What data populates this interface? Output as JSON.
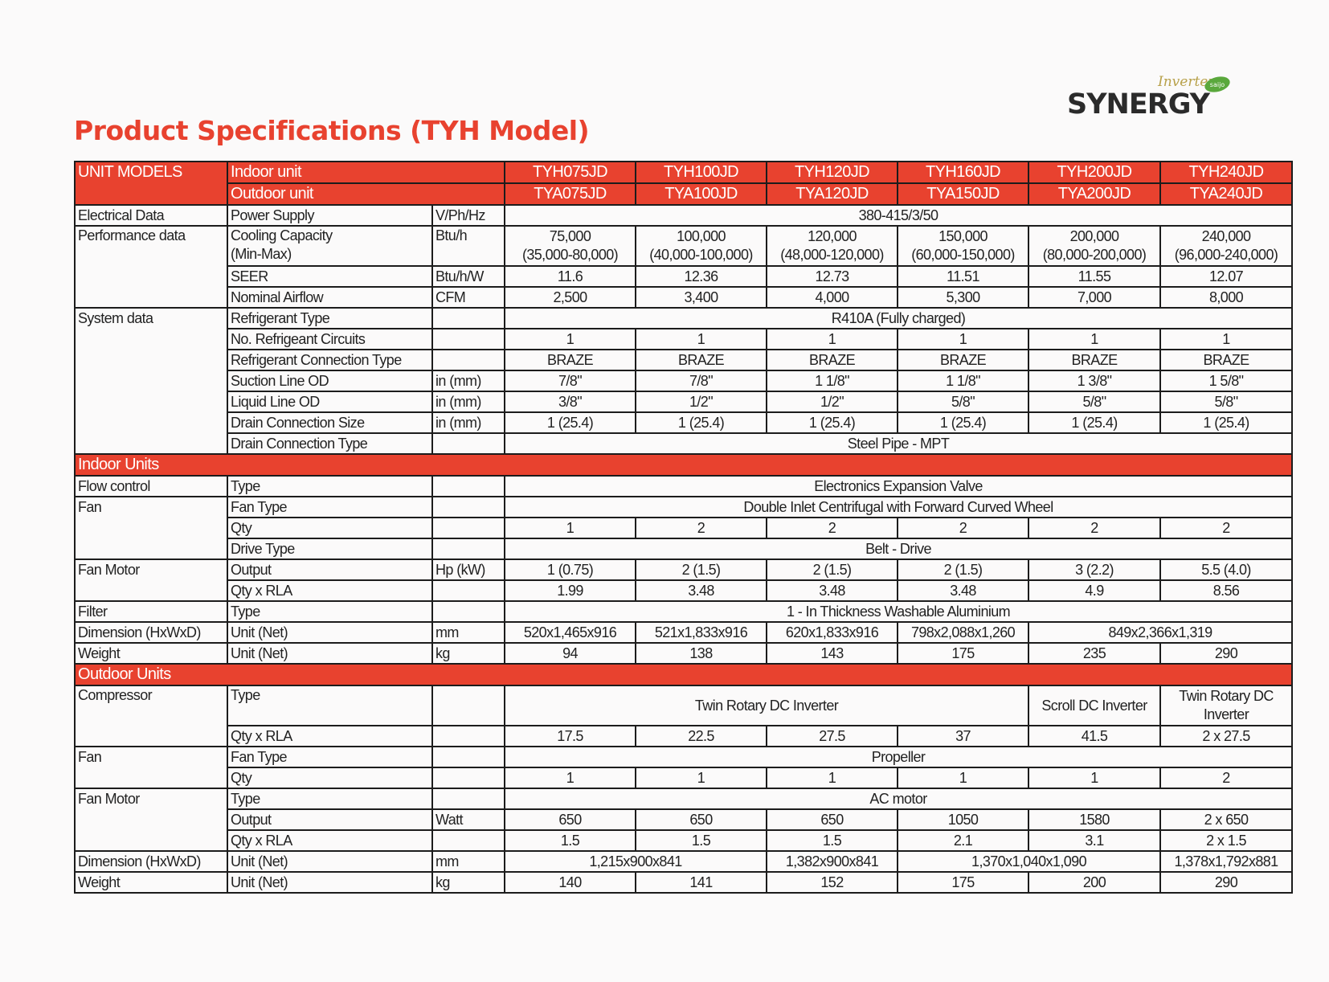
{
  "title": "Product Specifications (TYH Model)",
  "logo": {
    "brand": "SYNERGY",
    "script": "Inverter",
    "badge": "saijo"
  },
  "header": {
    "unit_models": "UNIT MODELS",
    "indoor_unit": "Indoor unit",
    "outdoor_unit": "Outdoor unit",
    "indoor_models": [
      "TYH075JD",
      "TYH100JD",
      "TYH120JD",
      "TYH160JD",
      "TYH200JD",
      "TYH240JD"
    ],
    "outdoor_models": [
      "TYA075JD",
      "TYA100JD",
      "TYA120JD",
      "TYA150JD",
      "TYA200JD",
      "TYA240JD"
    ]
  },
  "general": {
    "electrical_data": "Electrical Data",
    "power_supply": {
      "label": "Power Supply",
      "unit": "V/Ph/Hz",
      "value": "380-415/3/50"
    },
    "performance_data": "Performance data",
    "cooling_capacity": {
      "label1": "Cooling Capacity",
      "label2": "(Min-Max)",
      "unit": "Btu/h",
      "values": [
        "75,000",
        "100,000",
        "120,000",
        "150,000",
        "200,000",
        "240,000"
      ],
      "ranges": [
        "(35,000-80,000)",
        "(40,000-100,000)",
        "(48,000-120,000)",
        "(60,000-150,000)",
        "(80,000-200,000)",
        "(96,000-240,000)"
      ]
    },
    "seer": {
      "label": "SEER",
      "unit": "Btu/h/W",
      "values": [
        "11.6",
        "12.36",
        "12.73",
        "11.51",
        "11.55",
        "12.07"
      ]
    },
    "nominal_airflow": {
      "label": "Nominal Airflow",
      "unit": "CFM",
      "values": [
        "2,500",
        "3,400",
        "4,000",
        "5,300",
        "7,000",
        "8,000"
      ]
    },
    "system_data": "System data",
    "refrigerant_type": {
      "label": "Refrigerant Type",
      "value": "R410A (Fully charged)"
    },
    "refrigerant_circuits": {
      "label": "No. Refrigeant Circuits",
      "values": [
        "1",
        "1",
        "1",
        "1",
        "1",
        "1"
      ]
    },
    "refrigerant_connection": {
      "label": "Refrigerant Connection Type",
      "values": [
        "BRAZE",
        "BRAZE",
        "BRAZE",
        "BRAZE",
        "BRAZE",
        "BRAZE"
      ]
    },
    "suction_line": {
      "label": "Suction Line OD",
      "unit": "in (mm)",
      "values": [
        "7/8\"",
        "7/8\"",
        "1 1/8\"",
        "1 1/8\"",
        "1 3/8\"",
        "1 5/8\""
      ]
    },
    "liquid_line": {
      "label": "Liquid Line OD",
      "unit": "in (mm)",
      "values": [
        "3/8\"",
        "1/2\"",
        "1/2\"",
        "5/8\"",
        "5/8\"",
        "5/8\""
      ]
    },
    "drain_size": {
      "label": "Drain Connection Size",
      "unit": "in (mm)",
      "values": [
        "1 (25.4)",
        "1 (25.4)",
        "1 (25.4)",
        "1 (25.4)",
        "1 (25.4)",
        "1 (25.4)"
      ]
    },
    "drain_type": {
      "label": "Drain Connection Type",
      "value": "Steel Pipe - MPT"
    }
  },
  "indoor": {
    "section": "Indoor Units",
    "flow_control": {
      "category": "Flow control",
      "label": "Type",
      "value": "Electronics Expansion Valve"
    },
    "fan": {
      "category": "Fan",
      "fan_type": {
        "label": "Fan Type",
        "value": "Double Inlet Centrifugal with Forward Curved Wheel"
      },
      "qty": {
        "label": "Qty",
        "values": [
          "1",
          "2",
          "2",
          "2",
          "2",
          "2"
        ]
      },
      "drive_type": {
        "label": "Drive Type",
        "value": "Belt - Drive"
      }
    },
    "fan_motor": {
      "category": "Fan Motor",
      "output": {
        "label": "Output",
        "unit": "Hp (kW)",
        "values": [
          "1 (0.75)",
          "2 (1.5)",
          "2 (1.5)",
          "2 (1.5)",
          "3 (2.2)",
          "5.5 (4.0)"
        ]
      },
      "qty_rla": {
        "label": "Qty x RLA",
        "values": [
          "1.99",
          "3.48",
          "3.48",
          "3.48",
          "4.9",
          "8.56"
        ]
      }
    },
    "filter": {
      "category": "Filter",
      "label": "Type",
      "value": "1 - In Thickness Washable Aluminium"
    },
    "dimension": {
      "category": "Dimension (HxWxD)",
      "label": "Unit (Net)",
      "unit": "mm",
      "values": [
        "520x1,465x916",
        "521x1,833x916",
        "620x1,833x916",
        "798x2,088x1,260"
      ],
      "merged_last": "849x2,366x1,319"
    },
    "weight": {
      "category": "Weight",
      "label": "Unit (Net)",
      "unit": "kg",
      "values": [
        "94",
        "138",
        "143",
        "175",
        "235",
        "290"
      ]
    }
  },
  "outdoor": {
    "section": "Outdoor Units",
    "compressor": {
      "category": "Compressor",
      "type": {
        "label": "Type",
        "merged": "Twin Rotary DC Inverter",
        "col5": "Scroll DC Inverter",
        "col6_line1": "Twin Rotary DC",
        "col6_line2": "Inverter"
      },
      "qty_rla": {
        "label": "Qty x RLA",
        "values": [
          "17.5",
          "22.5",
          "27.5",
          "37",
          "41.5",
          "2 x 27.5"
        ]
      }
    },
    "fan": {
      "category": "Fan",
      "fan_type": {
        "label": "Fan Type",
        "value": "Propeller"
      },
      "qty": {
        "label": "Qty",
        "values": [
          "1",
          "1",
          "1",
          "1",
          "1",
          "2"
        ]
      }
    },
    "fan_motor": {
      "category": "Fan Motor",
      "type": {
        "label": "Type",
        "value": "AC motor"
      },
      "output": {
        "label": "Output",
        "unit": "Watt",
        "values": [
          "650",
          "650",
          "650",
          "1050",
          "1580",
          "2 x 650"
        ]
      },
      "qty_rla": {
        "label": "Qty x RLA",
        "values": [
          "1.5",
          "1.5",
          "1.5",
          "2.1",
          "3.1",
          "2 x 1.5"
        ]
      }
    },
    "dimension": {
      "category": "Dimension (HxWxD)",
      "label": "Unit (Net)",
      "unit": "mm",
      "values": [
        "1,215x900x841",
        "1,382x900x841",
        "1,370x1,040x1,090",
        "1,378x1,792x881"
      ]
    },
    "weight": {
      "category": "Weight",
      "label": "Unit (Net)",
      "unit": "kg",
      "values": [
        "140",
        "141",
        "152",
        "175",
        "200",
        "290"
      ]
    }
  },
  "colors": {
    "accent": "#e8422f",
    "text": "#222222",
    "border": "#1c1c1c",
    "background": "#fbfafa"
  }
}
